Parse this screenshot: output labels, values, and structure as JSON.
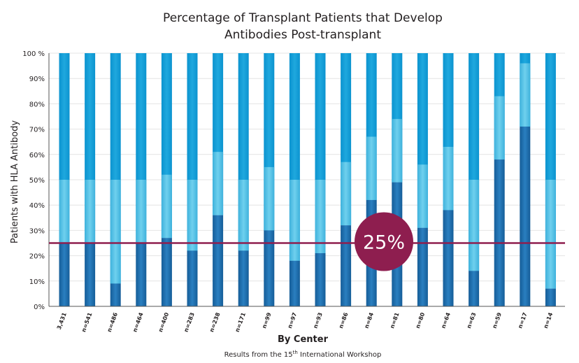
{
  "chart_data": {
    "type": "bar",
    "title_line1": "Percentage of Transplant Patients that Develop",
    "title_line2": "Antibodies Post-transplant",
    "ylabel": "Patients with HLA Antibody",
    "xlabel": "By Center",
    "footnote_before": "Results from the 15",
    "footnote_sup": "th",
    "footnote_after": " International Workshop",
    "ylim": [
      0,
      100
    ],
    "yticks": [
      "0%",
      "10%",
      "20%",
      "30%",
      "40%",
      "50%",
      "60%",
      "70%",
      "80%",
      "90%",
      "100 %"
    ],
    "categories": [
      "3,431",
      "n=541",
      "n=486",
      "n=464",
      "n=400",
      "n=283",
      "n=238",
      "n=171",
      "n=99",
      "n=97",
      "n=93",
      "n=86",
      "n=84",
      "n=81",
      "n=80",
      "n=64",
      "n=63",
      "n=59",
      "n=17",
      "n=14"
    ],
    "values": [
      25,
      25,
      9,
      25,
      27,
      22,
      36,
      22,
      30,
      18,
      21,
      32,
      42,
      49,
      31,
      38,
      14,
      58,
      71,
      7
    ],
    "reference_line": {
      "value": 25,
      "label": "25%"
    },
    "colors": {
      "antibody_bar": "#1f6fb0",
      "remainder_bar": "#5cc3e3",
      "reference_line": "#8e1e4f",
      "badge": "#8e1e4f"
    },
    "grid": true,
    "legend": "none"
  }
}
